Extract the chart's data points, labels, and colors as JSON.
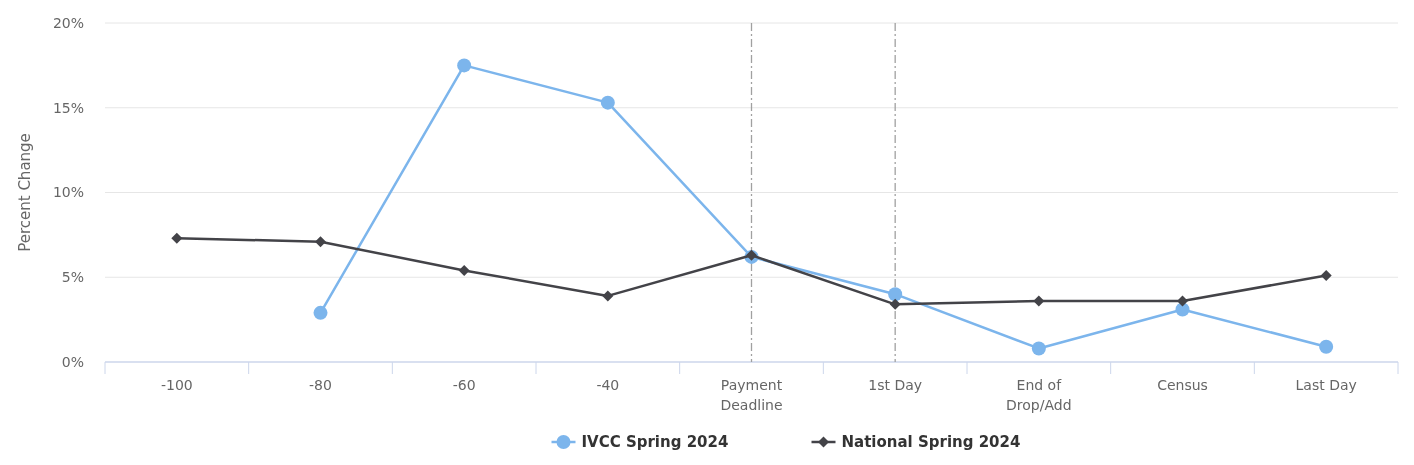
{
  "chart_data": {
    "type": "line",
    "ylabel": "Percent Change",
    "categories": [
      "-100",
      "-80",
      "-60",
      "-40",
      "Payment Deadline",
      "1st Day",
      "End of Drop/Add",
      "Census",
      "Last Day"
    ],
    "series": [
      {
        "name": "IVCC Spring 2024",
        "color": "#7cb5ec",
        "marker": "circle",
        "values": [
          null,
          2.9,
          17.5,
          15.3,
          6.2,
          4.0,
          0.8,
          3.1,
          0.9
        ]
      },
      {
        "name": "National Spring 2024",
        "color": "#434348",
        "marker": "diamond",
        "values": [
          7.3,
          7.1,
          5.4,
          3.9,
          6.3,
          3.4,
          3.6,
          3.6,
          5.1
        ]
      }
    ],
    "ylim": [
      0,
      20
    ],
    "yticks": [
      {
        "value": 0,
        "label": "0%"
      },
      {
        "value": 5,
        "label": "5%"
      },
      {
        "value": 10,
        "label": "10%"
      },
      {
        "value": 15,
        "label": "15%"
      },
      {
        "value": 20,
        "label": "20%"
      }
    ],
    "grid": "y",
    "legend": "bottom",
    "line_style": "solid",
    "ref_lines": [
      {
        "axis": "x",
        "value": "Payment Deadline",
        "color": "#a0a0a0",
        "line_style": "dashed"
      },
      {
        "axis": "x",
        "value": "1st Day",
        "color": "#a0a0a0",
        "line_style": "dashed"
      }
    ]
  }
}
